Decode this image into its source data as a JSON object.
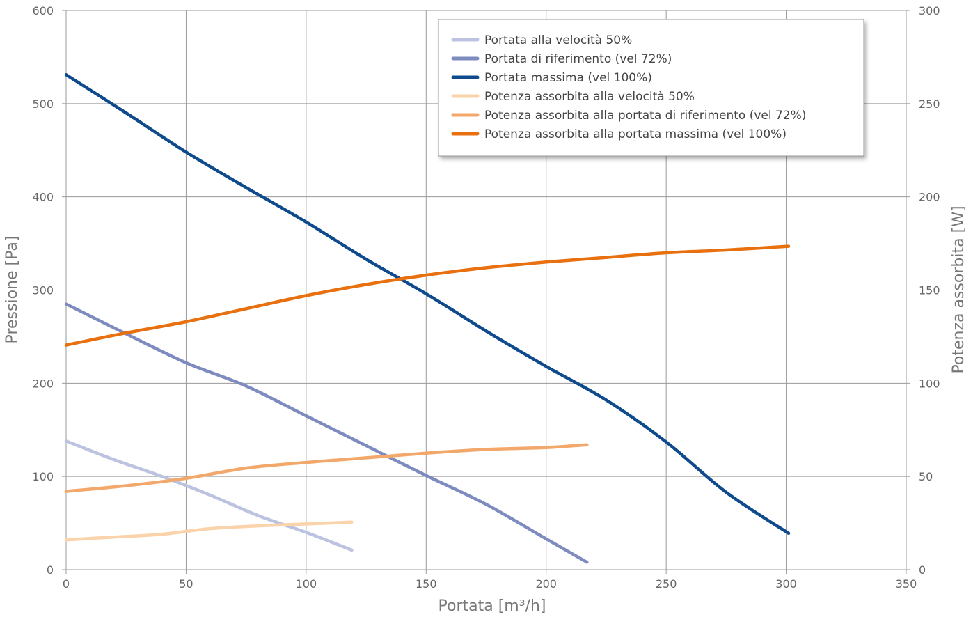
{
  "chart_data": {
    "type": "line",
    "xlabel": "Portata [m³/h]",
    "ylabel_left": "Pressione [Pa]",
    "ylabel_right": "Potenza assorbita [W]",
    "x_range": [
      0,
      350
    ],
    "x_ticks": [
      0,
      50,
      100,
      150,
      200,
      250,
      300,
      350
    ],
    "y_left_range": [
      0,
      600
    ],
    "y_left_ticks": [
      0,
      100,
      200,
      300,
      400,
      500,
      600
    ],
    "y_right_range": [
      0,
      300
    ],
    "y_right_ticks": [
      0,
      50,
      100,
      150,
      200,
      250,
      300
    ],
    "grid": true,
    "legend_position": "top-right",
    "series": [
      {
        "name": "Portata alla velocità 50%",
        "axis": "left",
        "color": "#bcc3e0",
        "points": [
          [
            0,
            138
          ],
          [
            20,
            118
          ],
          [
            40,
            100
          ],
          [
            60,
            80
          ],
          [
            80,
            58
          ],
          [
            100,
            40
          ],
          [
            119,
            21
          ]
        ]
      },
      {
        "name": "Portata di riferimento (vel 72%)",
        "axis": "left",
        "color": "#7e8bbf",
        "points": [
          [
            0,
            285
          ],
          [
            25,
            253
          ],
          [
            50,
            222
          ],
          [
            75,
            197
          ],
          [
            100,
            165
          ],
          [
            125,
            133
          ],
          [
            150,
            101
          ],
          [
            175,
            70
          ],
          [
            200,
            33
          ],
          [
            217,
            8
          ]
        ]
      },
      {
        "name": "Portata massima (vel 100%)",
        "axis": "left",
        "color": "#0e4a8c",
        "points": [
          [
            0,
            531
          ],
          [
            25,
            490
          ],
          [
            50,
            448
          ],
          [
            75,
            410
          ],
          [
            100,
            373
          ],
          [
            125,
            333
          ],
          [
            150,
            296
          ],
          [
            175,
            256
          ],
          [
            200,
            218
          ],
          [
            225,
            182
          ],
          [
            250,
            137
          ],
          [
            275,
            83
          ],
          [
            301,
            39
          ]
        ]
      },
      {
        "name": "Potenza assorbita alla velocità 50%",
        "axis": "right",
        "color": "#fad3aa",
        "points": [
          [
            0,
            16
          ],
          [
            20,
            17.5
          ],
          [
            40,
            19
          ],
          [
            60,
            22
          ],
          [
            80,
            23.5
          ],
          [
            100,
            24.5
          ],
          [
            119,
            25.5
          ]
        ]
      },
      {
        "name": "Potenza assorbita alla portata di riferimento (vel 72%)",
        "axis": "right",
        "color": "#f3a86b",
        "points": [
          [
            0,
            42
          ],
          [
            25,
            45
          ],
          [
            50,
            49
          ],
          [
            75,
            54.5
          ],
          [
            100,
            57.5
          ],
          [
            125,
            60
          ],
          [
            150,
            62.5
          ],
          [
            175,
            64.5
          ],
          [
            200,
            65.5
          ],
          [
            217,
            67
          ]
        ]
      },
      {
        "name": "Potenza assorbita alla portata massima (vel 100%)",
        "axis": "right",
        "color": "#e8700f",
        "points": [
          [
            0,
            120.5
          ],
          [
            25,
            127
          ],
          [
            50,
            133
          ],
          [
            75,
            140
          ],
          [
            100,
            147
          ],
          [
            125,
            153
          ],
          [
            150,
            158
          ],
          [
            175,
            162
          ],
          [
            200,
            165
          ],
          [
            225,
            167.5
          ],
          [
            250,
            170
          ],
          [
            275,
            171.5
          ],
          [
            301,
            173.5
          ]
        ]
      }
    ]
  }
}
